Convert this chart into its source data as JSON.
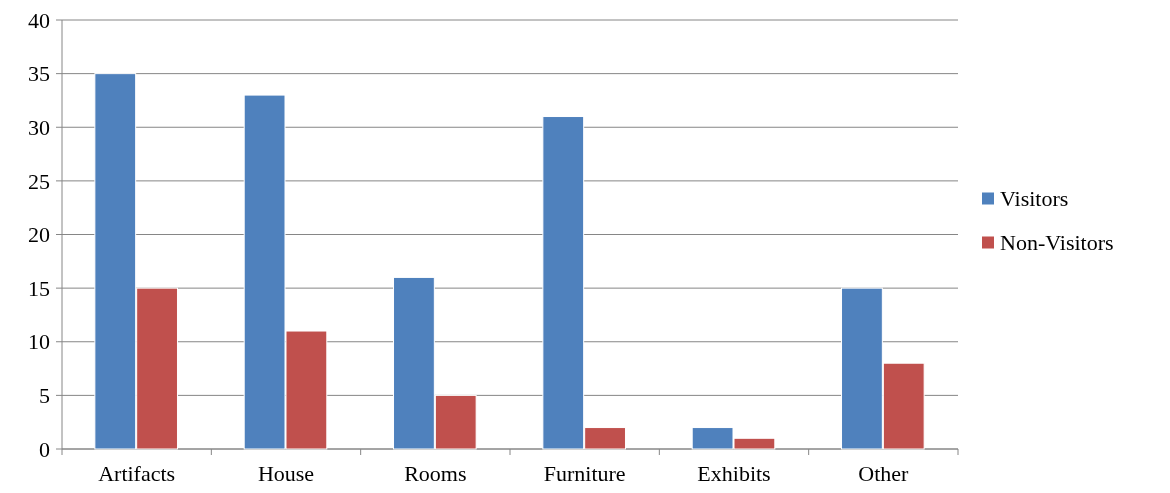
{
  "chart_data": {
    "type": "bar",
    "categories": [
      "Artifacts",
      "House",
      "Rooms",
      "Furniture",
      "Exhibits",
      "Other"
    ],
    "series": [
      {
        "name": "Visitors",
        "color": "#4f81bd",
        "values": [
          35,
          33,
          16,
          31,
          2,
          15
        ]
      },
      {
        "name": "Non-Visitors",
        "color": "#c0504d",
        "values": [
          15,
          11,
          5,
          2,
          1,
          8
        ]
      }
    ],
    "ylim": [
      0,
      40
    ],
    "yticks": [
      0,
      5,
      10,
      15,
      20,
      25,
      30,
      35,
      40
    ],
    "grid": "y",
    "legend": "right"
  }
}
